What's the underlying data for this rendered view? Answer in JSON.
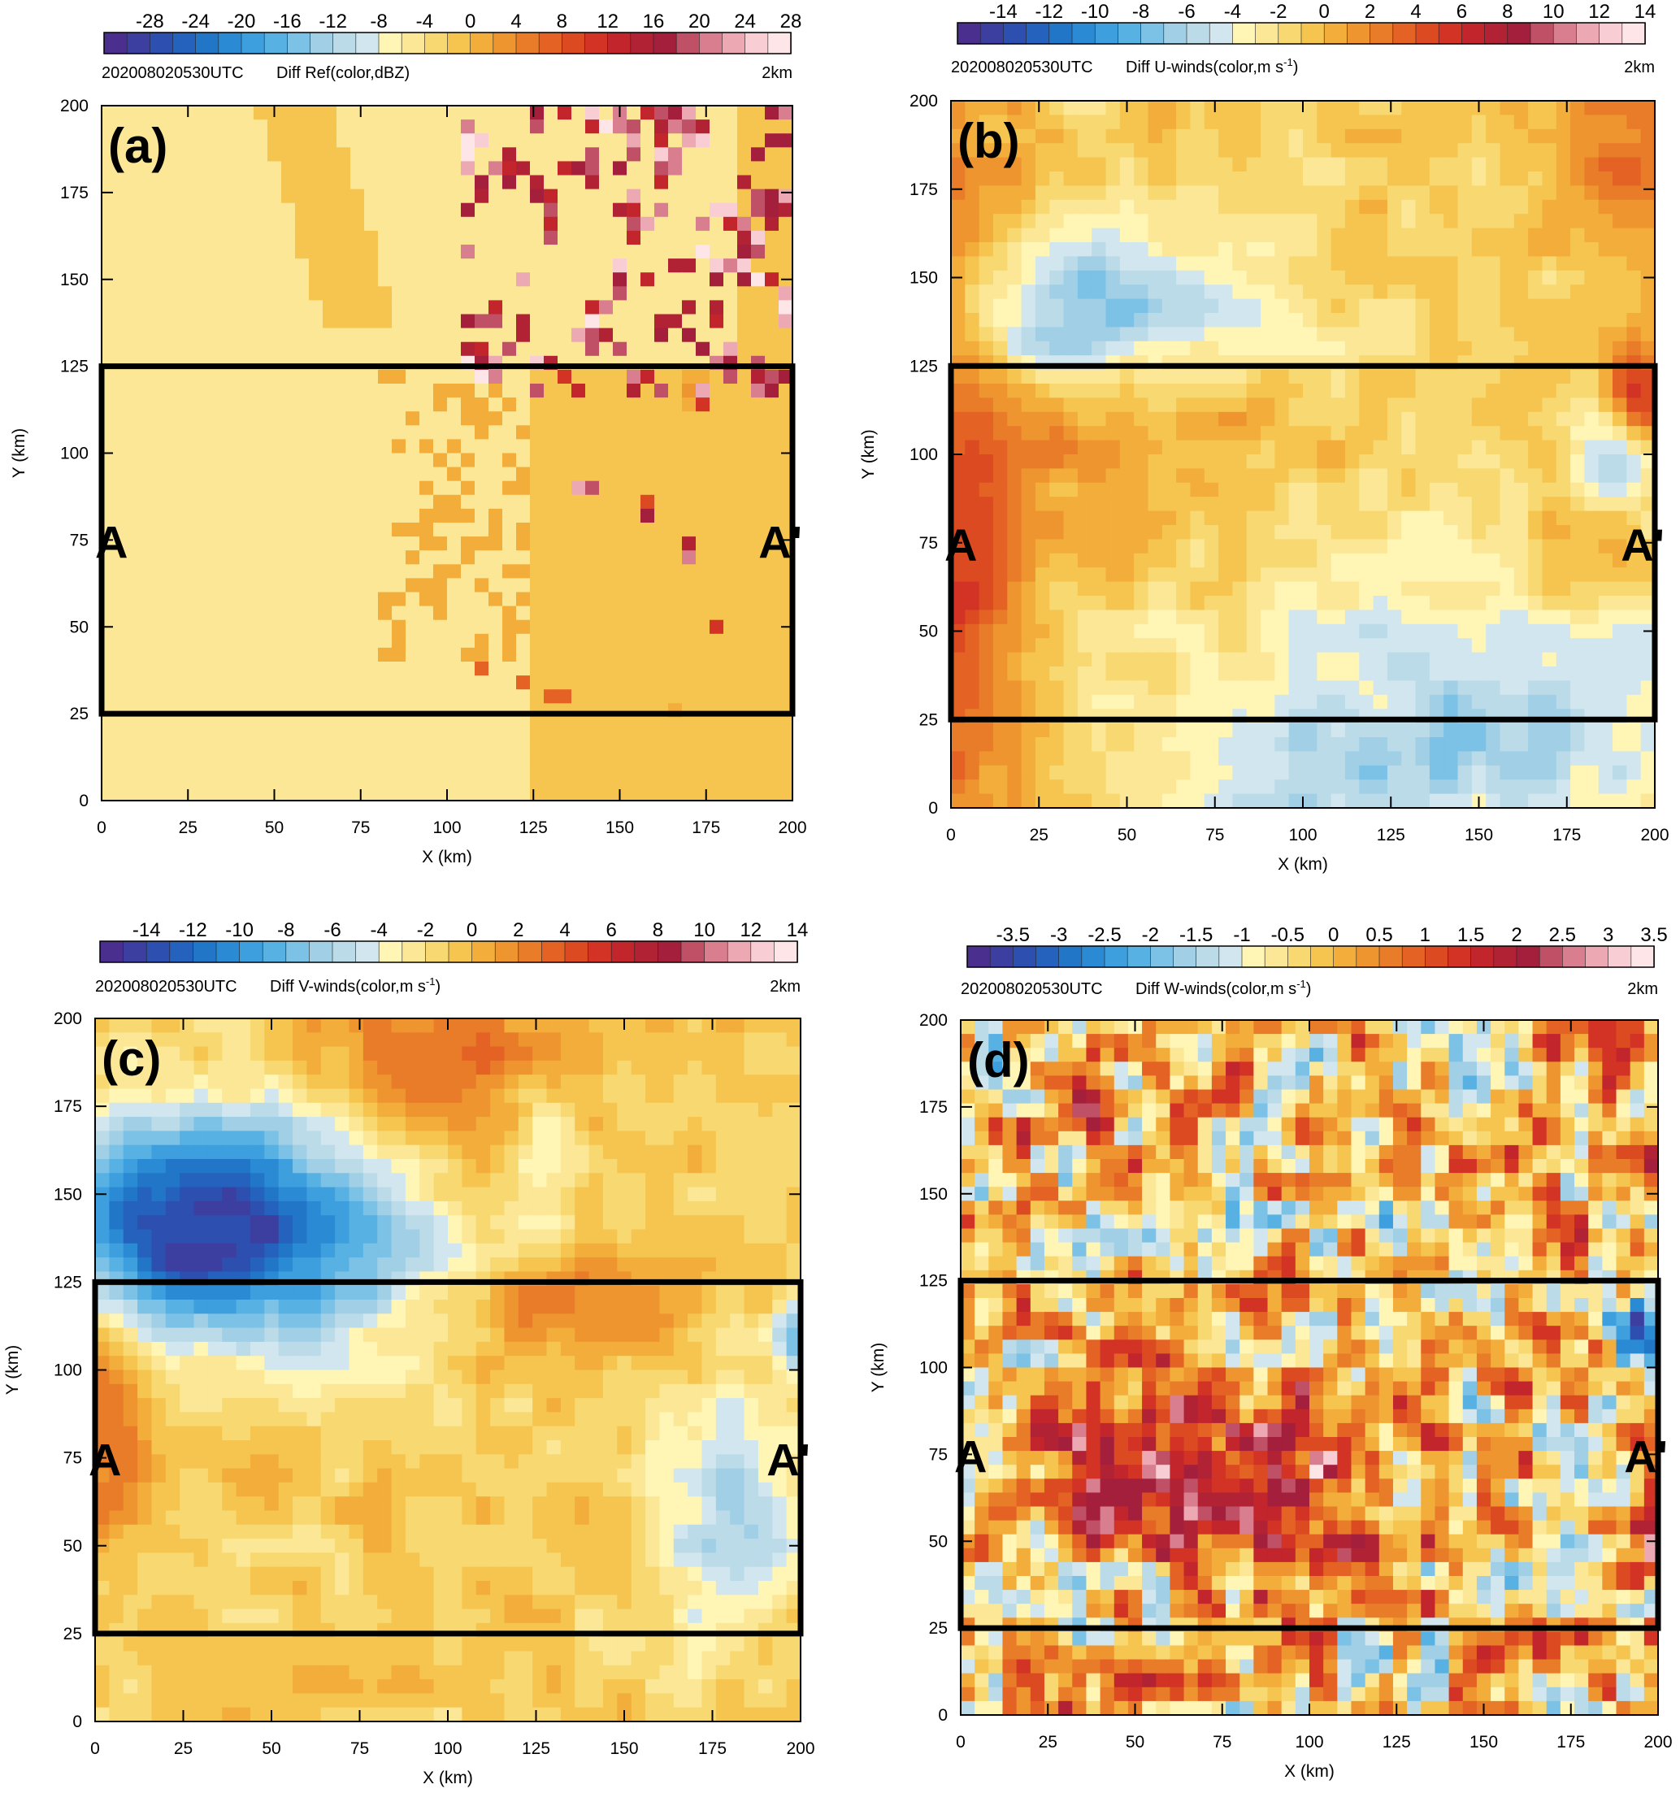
{
  "panels": [
    {
      "id": "a",
      "label": "(a)",
      "time": "202008020530UTC",
      "title": "Diff Ref(color,dBZ)",
      "level": "2km",
      "colorbar": {
        "labels": [
          "-28",
          "-24",
          "-20",
          "-16",
          "-12",
          "-8",
          "-4",
          "0",
          "4",
          "8",
          "12",
          "16",
          "20",
          "24",
          "28"
        ],
        "n_bins": 30,
        "min": -30,
        "max": 30
      },
      "field": "reflectivity",
      "markers": [
        "A",
        "A'"
      ]
    },
    {
      "id": "b",
      "label": "(b)",
      "time": "202008020530UTC",
      "title": "Diff U-winds(color,m s",
      "title_sup": "-1",
      "title_end": ")",
      "level": "2km",
      "colorbar": {
        "labels": [
          "-14",
          "-12",
          "-10",
          "-8",
          "-6",
          "-4",
          "-2",
          "0",
          "2",
          "4",
          "6",
          "8",
          "10",
          "12",
          "14"
        ],
        "n_bins": 30,
        "min": -15,
        "max": 15
      },
      "field": "u",
      "markers": [
        "A",
        "A'"
      ]
    },
    {
      "id": "c",
      "label": "(c)",
      "time": "202008020530UTC",
      "title": "Diff V-winds(color,m s",
      "title_sup": "-1",
      "title_end": ")",
      "level": "2km",
      "colorbar": {
        "labels": [
          "-14",
          "-12",
          "-10",
          "-8",
          "-6",
          "-4",
          "-2",
          "0",
          "2",
          "4",
          "6",
          "8",
          "10",
          "12",
          "14"
        ],
        "n_bins": 30,
        "min": -15,
        "max": 15
      },
      "field": "v",
      "markers": [
        "A",
        "A'"
      ]
    },
    {
      "id": "d",
      "label": "(d)",
      "time": "202008020530UTC",
      "title": "Diff W-winds(color,m s",
      "title_sup": "-1",
      "title_end": ")",
      "level": "2km",
      "colorbar": {
        "labels": [
          "-3.5",
          "-3",
          "-2.5",
          "-2",
          "-1.5",
          "-1",
          "-0.5",
          "0",
          "0.5",
          "1",
          "1.5",
          "2",
          "2.5",
          "3",
          "3.5"
        ],
        "n_bins": 30,
        "min": -3.75,
        "max": 3.75
      },
      "field": "w",
      "markers": [
        "A",
        "A'"
      ]
    }
  ],
  "chart_data": [
    {
      "type": "heatmap",
      "panel": "(a)",
      "title": "Diff Ref(color,dBZ)",
      "xlabel": "X (km)",
      "ylabel": "Y (km)",
      "xlim": [
        0,
        200
      ],
      "ylim": [
        0,
        200
      ],
      "xticks": [
        0,
        25,
        50,
        75,
        100,
        125,
        150,
        175,
        200
      ],
      "yticks": [
        0,
        25,
        50,
        75,
        100,
        125,
        150,
        175,
        200
      ],
      "box": {
        "x": [
          0,
          200
        ],
        "y": [
          25,
          125
        ]
      }
    },
    {
      "type": "heatmap",
      "panel": "(b)",
      "title": "Diff U-winds",
      "xlabel": "X (km)",
      "ylabel": "Y (km)",
      "xlim": [
        0,
        200
      ],
      "ylim": [
        0,
        200
      ],
      "xticks": [
        0,
        25,
        50,
        75,
        100,
        125,
        150,
        175,
        200
      ],
      "yticks": [
        0,
        25,
        50,
        75,
        100,
        125,
        150,
        175,
        200
      ],
      "box": {
        "x": [
          0,
          200
        ],
        "y": [
          25,
          125
        ]
      }
    },
    {
      "type": "heatmap",
      "panel": "(c)",
      "title": "Diff V-winds",
      "xlabel": "X (km)",
      "ylabel": "Y (km)",
      "xlim": [
        0,
        200
      ],
      "ylim": [
        0,
        200
      ],
      "xticks": [
        0,
        25,
        50,
        75,
        100,
        125,
        150,
        175,
        200
      ],
      "yticks": [
        0,
        25,
        50,
        75,
        100,
        125,
        150,
        175,
        200
      ],
      "box": {
        "x": [
          0,
          200
        ],
        "y": [
          25,
          125
        ]
      }
    },
    {
      "type": "heatmap",
      "panel": "(d)",
      "title": "Diff W-winds",
      "xlabel": "X (km)",
      "ylabel": "Y (km)",
      "xlim": [
        0,
        200
      ],
      "ylim": [
        0,
        200
      ],
      "xticks": [
        0,
        25,
        50,
        75,
        100,
        125,
        150,
        175,
        200
      ],
      "yticks": [
        0,
        25,
        50,
        75,
        100,
        125,
        150,
        175,
        200
      ],
      "box": {
        "x": [
          0,
          200
        ],
        "y": [
          25,
          125
        ]
      }
    }
  ],
  "axes": {
    "xlabel": "X (km)",
    "ylabel": "Y (km)",
    "ticks": [
      0,
      25,
      50,
      75,
      100,
      125,
      150,
      175,
      200
    ],
    "box_y": [
      25,
      125
    ]
  },
  "palette": [
    "#4b2f8f",
    "#3c3fa0",
    "#2c4fb0",
    "#2462bd",
    "#2276c8",
    "#2a8bd4",
    "#3d9fdd",
    "#58b1e3",
    "#7cc1e6",
    "#a0cfe6",
    "#bbdbe9",
    "#d1e6ef",
    "#fff5b5",
    "#fbe795",
    "#f8d870",
    "#f6c550",
    "#f2ad3a",
    "#ee9530",
    "#e97c29",
    "#e36224",
    "#dc4a22",
    "#d23324",
    "#c3252c",
    "#b22235",
    "#a41f3b",
    "#c05066",
    "#d97e8e",
    "#eda9b3",
    "#f8cdd3",
    "#fde5e8"
  ],
  "annotations_color": "#000000"
}
